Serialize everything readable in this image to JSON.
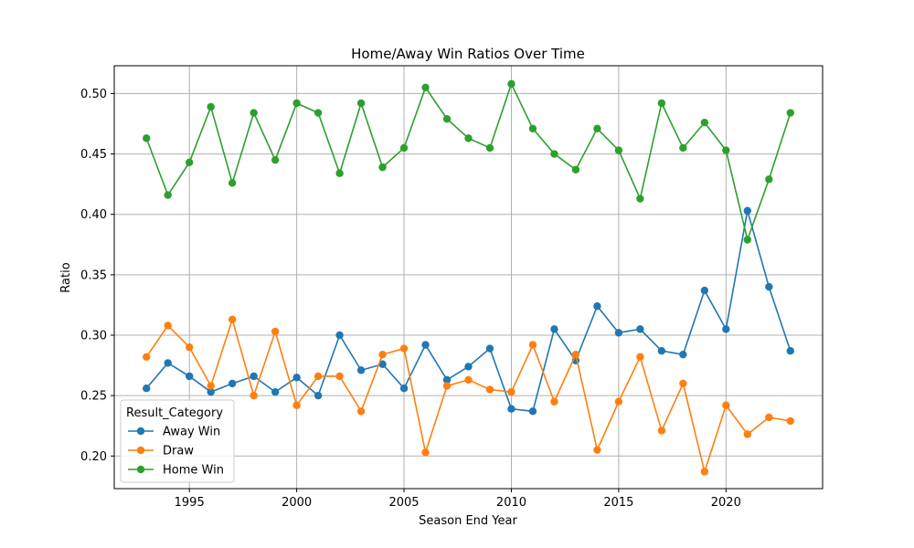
{
  "chart_data": {
    "type": "line",
    "title": "Home/Away Win Ratios Over Time",
    "xlabel": "Season End Year",
    "ylabel": "Ratio",
    "xlim": [
      1991.5,
      2024.5
    ],
    "ylim": [
      0.173,
      0.523
    ],
    "xticks": [
      1995,
      2000,
      2005,
      2010,
      2015,
      2020
    ],
    "yticks": [
      0.2,
      0.25,
      0.3,
      0.35,
      0.4,
      0.45,
      0.5
    ],
    "ytick_labels": [
      "0.20",
      "0.25",
      "0.30",
      "0.35",
      "0.40",
      "0.45",
      "0.50"
    ],
    "grid": true,
    "legend": {
      "title": "Result_Category",
      "placement": "lower-left"
    },
    "x": [
      1993,
      1994,
      1995,
      1996,
      1997,
      1998,
      1999,
      2000,
      2001,
      2002,
      2003,
      2004,
      2005,
      2006,
      2007,
      2008,
      2009,
      2010,
      2011,
      2012,
      2013,
      2014,
      2015,
      2016,
      2017,
      2018,
      2019,
      2020,
      2021,
      2022,
      2023
    ],
    "series": [
      {
        "name": "Away Win",
        "color": "#1f77b4",
        "values": [
          0.256,
          0.277,
          0.266,
          0.253,
          0.26,
          0.266,
          0.253,
          0.265,
          0.25,
          0.3,
          0.271,
          0.276,
          0.256,
          0.292,
          0.263,
          0.274,
          0.289,
          0.239,
          0.237,
          0.305,
          0.279,
          0.324,
          0.302,
          0.305,
          0.287,
          0.284,
          0.337,
          0.305,
          0.403,
          0.34,
          0.287
        ]
      },
      {
        "name": "Draw",
        "color": "#ff7f0e",
        "values": [
          0.282,
          0.308,
          0.29,
          0.258,
          0.313,
          0.25,
          0.303,
          0.242,
          0.266,
          0.266,
          0.237,
          0.284,
          0.289,
          0.203,
          0.258,
          0.263,
          0.255,
          0.253,
          0.292,
          0.245,
          0.284,
          0.205,
          0.245,
          0.282,
          0.221,
          0.26,
          0.187,
          0.242,
          0.218,
          0.232,
          0.229
        ]
      },
      {
        "name": "Home Win",
        "color": "#2ca02c",
        "values": [
          0.463,
          0.416,
          0.443,
          0.489,
          0.426,
          0.484,
          0.445,
          0.492,
          0.484,
          0.434,
          0.492,
          0.439,
          0.455,
          0.505,
          0.479,
          0.463,
          0.455,
          0.508,
          0.471,
          0.45,
          0.437,
          0.471,
          0.453,
          0.413,
          0.492,
          0.455,
          0.476,
          0.453,
          0.379,
          0.429,
          0.484
        ]
      }
    ]
  }
}
